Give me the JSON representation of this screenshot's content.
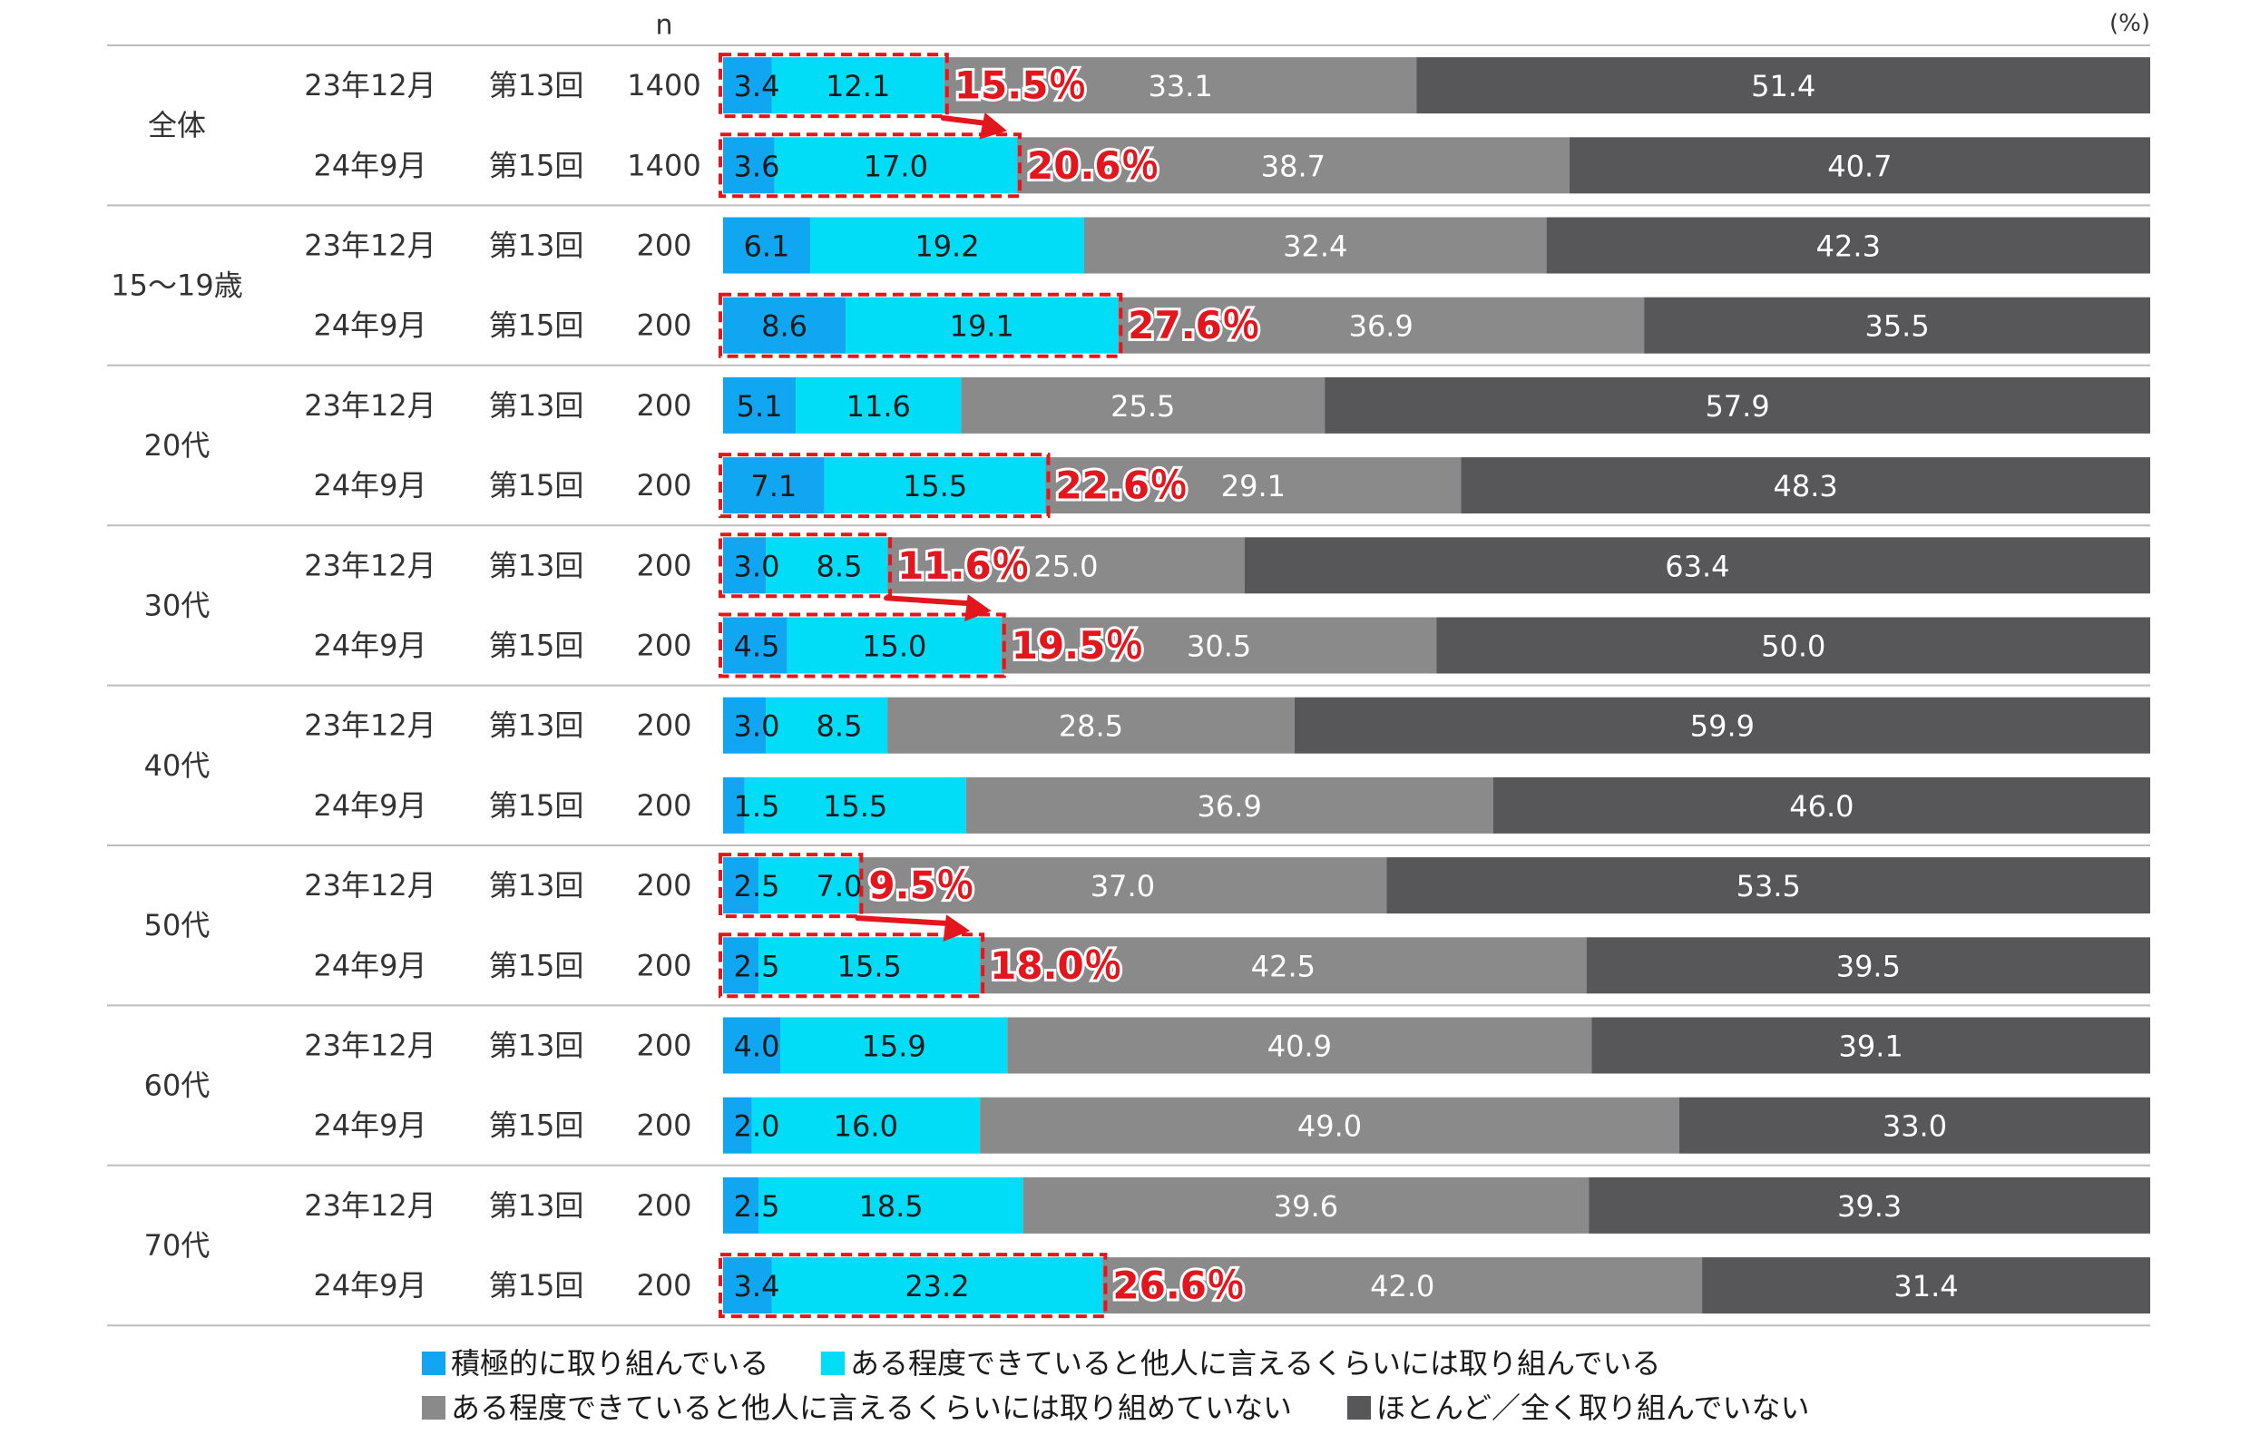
{
  "chart_data": {
    "type": "bar",
    "orientation": "horizontal",
    "stacked": true,
    "percent_scale": true,
    "unit_label": "(%)",
    "n_header": "n",
    "xlim": [
      0,
      100
    ],
    "grid": false,
    "legend_position": "bottom",
    "series": [
      {
        "name": "積極的に取り組んでいる",
        "color": "#10a6f2"
      },
      {
        "name": "ある程度できていると他人に言えるくらいには取り組んでいる",
        "color": "#01dcf7"
      },
      {
        "name": "ある程度できていると他人に言えるくらいには取り組めていない",
        "color": "#8a8a8a"
      },
      {
        "name": "ほとんど／全く取り組んでいない",
        "color": "#57575a"
      }
    ],
    "groups": [
      {
        "label": "全体",
        "rows": [
          {
            "date": "23年12月",
            "round": "第13回",
            "n": "1400",
            "values": [
              3.4,
              12.1,
              33.1,
              51.4
            ],
            "labels": [
              "3.4",
              "12.1",
              "33.1",
              "51.4"
            ],
            "highlight": "15.5％"
          },
          {
            "date": "24年9月",
            "round": "第15回",
            "n": "1400",
            "values": [
              3.6,
              17.0,
              38.7,
              40.7
            ],
            "labels": [
              "3.6",
              "17.0",
              "38.7",
              "40.7"
            ],
            "highlight": "20.6％"
          }
        ],
        "arrow": true
      },
      {
        "label": "15～19歳",
        "rows": [
          {
            "date": "23年12月",
            "round": "第13回",
            "n": "200",
            "values": [
              6.1,
              19.2,
              32.4,
              42.3
            ],
            "labels": [
              "6.1",
              "19.2",
              "32.4",
              "42.3"
            ],
            "highlight": ""
          },
          {
            "date": "24年9月",
            "round": "第15回",
            "n": "200",
            "values": [
              8.6,
              19.1,
              36.9,
              35.5
            ],
            "labels": [
              "8.6",
              "19.1",
              "36.9",
              "35.5"
            ],
            "highlight": "27.6％"
          }
        ],
        "arrow": false
      },
      {
        "label": "20代",
        "rows": [
          {
            "date": "23年12月",
            "round": "第13回",
            "n": "200",
            "values": [
              5.1,
              11.6,
              25.5,
              57.9
            ],
            "labels": [
              "5.1",
              "11.6",
              "25.5",
              "57.9"
            ],
            "highlight": ""
          },
          {
            "date": "24年9月",
            "round": "第15回",
            "n": "200",
            "values": [
              7.1,
              15.5,
              29.1,
              48.3
            ],
            "labels": [
              "7.1",
              "15.5",
              "29.1",
              "48.3"
            ],
            "highlight": "22.6％"
          }
        ],
        "arrow": false
      },
      {
        "label": "30代",
        "rows": [
          {
            "date": "23年12月",
            "round": "第13回",
            "n": "200",
            "values": [
              3.0,
              8.5,
              25.0,
              63.4
            ],
            "labels": [
              "3.0",
              "8.5",
              "25.0",
              "63.4"
            ],
            "highlight": "11.6％"
          },
          {
            "date": "24年9月",
            "round": "第15回",
            "n": "200",
            "values": [
              4.5,
              15.0,
              30.5,
              50.0
            ],
            "labels": [
              "4.5",
              "15.0",
              "30.5",
              "50.0"
            ],
            "highlight": "19.5％"
          }
        ],
        "arrow": true
      },
      {
        "label": "40代",
        "rows": [
          {
            "date": "23年12月",
            "round": "第13回",
            "n": "200",
            "values": [
              3.0,
              8.5,
              28.5,
              59.9
            ],
            "labels": [
              "3.0",
              "8.5",
              "28.5",
              "59.9"
            ],
            "highlight": ""
          },
          {
            "date": "24年9月",
            "round": "第15回",
            "n": "200",
            "values": [
              1.5,
              15.5,
              36.9,
              46.0
            ],
            "labels": [
              "1.5",
              "15.5",
              "36.9",
              "46.0"
            ],
            "highlight": ""
          }
        ],
        "arrow": false
      },
      {
        "label": "50代",
        "rows": [
          {
            "date": "23年12月",
            "round": "第13回",
            "n": "200",
            "values": [
              2.5,
              7.0,
              37.0,
              53.5
            ],
            "labels": [
              "2.5",
              "7.0",
              "37.0",
              "53.5"
            ],
            "highlight": "9.5％"
          },
          {
            "date": "24年9月",
            "round": "第15回",
            "n": "200",
            "values": [
              2.5,
              15.5,
              42.5,
              39.5
            ],
            "labels": [
              "2.5",
              "15.5",
              "42.5",
              "39.5"
            ],
            "highlight": "18.0％"
          }
        ],
        "arrow": true
      },
      {
        "label": "60代",
        "rows": [
          {
            "date": "23年12月",
            "round": "第13回",
            "n": "200",
            "values": [
              4.0,
              15.9,
              40.9,
              39.1
            ],
            "labels": [
              "4.0",
              "15.9",
              "40.9",
              "39.1"
            ],
            "highlight": ""
          },
          {
            "date": "24年9月",
            "round": "第15回",
            "n": "200",
            "values": [
              2.0,
              16.0,
              49.0,
              33.0
            ],
            "labels": [
              "2.0",
              "16.0",
              "49.0",
              "33.0"
            ],
            "highlight": ""
          }
        ],
        "arrow": false
      },
      {
        "label": "70代",
        "rows": [
          {
            "date": "23年12月",
            "round": "第13回",
            "n": "200",
            "values": [
              2.5,
              18.5,
              39.6,
              39.3
            ],
            "labels": [
              "2.5",
              "18.5",
              "39.6",
              "39.3"
            ],
            "highlight": ""
          },
          {
            "date": "24年9月",
            "round": "第15回",
            "n": "200",
            "values": [
              3.4,
              23.2,
              42.0,
              31.4
            ],
            "labels": [
              "3.4",
              "23.2",
              "42.0",
              "31.4"
            ],
            "highlight": "26.6％"
          }
        ],
        "arrow": false
      }
    ]
  },
  "colors": {
    "highlight": "#e3161e",
    "bar_text_dark": "#1a1a1a",
    "bar_text_light": "#ffffff",
    "separator": "#bdbdbd"
  }
}
